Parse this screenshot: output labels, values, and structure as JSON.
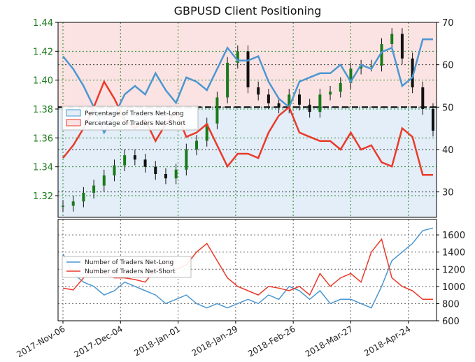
{
  "title": "GBPUSD Client Positioning",
  "x_dates": [
    "2017-Nov-06",
    "2017-Dec-04",
    "2018-Jan-01",
    "2018-Jan-29",
    "2018-Feb-26",
    "2018-Mar-27",
    "2018-Apr-24"
  ],
  "colors": {
    "price": "#1a7a1a",
    "net_long": "#4c97d1",
    "net_short": "#ea3a2a",
    "long_fill": "#e3eef8",
    "short_fill": "#fbe3e3"
  },
  "chart_data": [
    {
      "type": "line",
      "title": "GBPUSD Client Positioning",
      "x_days": [
        0,
        5,
        10,
        15,
        20,
        25,
        30,
        35,
        40,
        45,
        50,
        55,
        60,
        65,
        70,
        75,
        80,
        85,
        90,
        95,
        100,
        105,
        110,
        115,
        120,
        125,
        130,
        135,
        140,
        145,
        150,
        155,
        160,
        165,
        170,
        175,
        180
      ],
      "left_axis": {
        "label": "",
        "ticks": [
          1.32,
          1.34,
          1.36,
          1.38,
          1.4,
          1.42,
          1.44
        ],
        "range": [
          1.305,
          1.44
        ]
      },
      "right_axis": {
        "label": "",
        "ticks": [
          30,
          40,
          50,
          60,
          70
        ],
        "range": [
          24,
          70
        ]
      },
      "reference_line": 50,
      "legend": {
        "placement": "left",
        "entries": [
          "Percentage of Traders Net-Long",
          "Percentage of Traders Net-Short"
        ]
      },
      "price": [
        1.313,
        1.316,
        1.322,
        1.327,
        1.334,
        1.341,
        1.348,
        1.345,
        1.34,
        1.335,
        1.332,
        1.338,
        1.352,
        1.358,
        1.37,
        1.388,
        1.412,
        1.42,
        1.395,
        1.39,
        1.384,
        1.381,
        1.39,
        1.383,
        1.378,
        1.39,
        1.392,
        1.398,
        1.408,
        1.41,
        1.41,
        1.425,
        1.432,
        1.415,
        1.395,
        1.38,
        1.365
      ],
      "series": [
        {
          "name": "Percentage of Traders Net-Long",
          "values": [
            62,
            59,
            55,
            50,
            44,
            48,
            53,
            55,
            53,
            58,
            54,
            51,
            57,
            56,
            54,
            59,
            64,
            61,
            61,
            62,
            56,
            52,
            50,
            56,
            57,
            58,
            58,
            60,
            56,
            60,
            59,
            63,
            64,
            55,
            57,
            66,
            66
          ]
        },
        {
          "name": "Percentage of Traders Net-Short",
          "values": [
            38,
            41,
            45,
            50,
            56,
            52,
            47,
            45,
            47,
            42,
            46,
            49,
            43,
            44,
            46,
            41,
            36,
            39,
            39,
            38,
            44,
            48,
            50,
            44,
            43,
            42,
            42,
            40,
            44,
            40,
            41,
            37,
            36,
            45,
            43,
            34,
            34
          ]
        }
      ]
    },
    {
      "type": "line",
      "title": "",
      "x_days": [
        0,
        5,
        10,
        15,
        20,
        25,
        30,
        35,
        40,
        45,
        50,
        55,
        60,
        65,
        70,
        75,
        80,
        85,
        90,
        95,
        100,
        105,
        110,
        115,
        120,
        125,
        130,
        135,
        140,
        145,
        150,
        155,
        160,
        165,
        170,
        175,
        180
      ],
      "right_axis": {
        "label": "",
        "ticks": [
          600,
          800,
          1000,
          1200,
          1400,
          1600
        ],
        "range": [
          600,
          1780
        ]
      },
      "legend": {
        "placement": "left",
        "entries": [
          "Number of Traders Net-Long",
          "Number of Traders Net-Short"
        ]
      },
      "series": [
        {
          "name": "Number of Traders Net-Long",
          "values": [
            1380,
            1150,
            1050,
            1000,
            900,
            950,
            1050,
            1000,
            950,
            900,
            800,
            850,
            900,
            800,
            750,
            800,
            750,
            800,
            850,
            800,
            900,
            850,
            1000,
            950,
            850,
            950,
            800,
            850,
            850,
            800,
            750,
            1000,
            1300,
            1400,
            1500,
            1650,
            1680
          ]
        },
        {
          "name": "Number of Traders Net-Short",
          "values": [
            980,
            960,
            1100,
            1200,
            1150,
            1100,
            1100,
            1080,
            1050,
            1200,
            1300,
            1200,
            1250,
            1400,
            1500,
            1300,
            1100,
            1000,
            950,
            900,
            1000,
            980,
            950,
            1000,
            900,
            1150,
            1000,
            1100,
            1150,
            1050,
            1400,
            1550,
            1100,
            1000,
            950,
            850,
            850
          ]
        }
      ]
    }
  ]
}
